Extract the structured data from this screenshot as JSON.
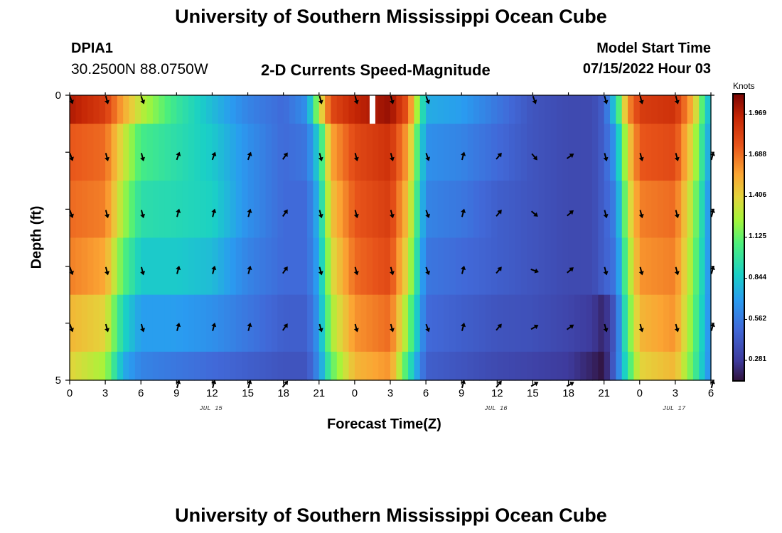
{
  "page_title_top": "University of Southern Mississippi Ocean Cube",
  "page_title_bottom": "University of Southern Mississippi Ocean Cube",
  "station": {
    "id": "DPIA1",
    "coords": "30.2500N  88.0750W"
  },
  "model": {
    "label": "Model Start Time",
    "start": "07/15/2022 Hour 03"
  },
  "chart_data": {
    "type": "heatmap",
    "title": "2-D Currents Speed-Magnitude",
    "xlabel": "Forecast Time(Z)",
    "ylabel": "Depth (ft)",
    "ylim": [
      0,
      5
    ],
    "x_hours_range": [
      0,
      54
    ],
    "x_tick_hours": [
      0,
      3,
      6,
      9,
      12,
      15,
      18,
      21,
      24,
      27,
      30,
      33,
      36,
      39,
      42,
      45,
      48,
      51,
      54
    ],
    "x_tick_labels": [
      "0",
      "3",
      "6",
      "9",
      "12",
      "15",
      "18",
      "21",
      "0",
      "3",
      "6",
      "9",
      "12",
      "15",
      "18",
      "21",
      "0",
      "3",
      "6"
    ],
    "y_tick_labels": [
      "0",
      "5"
    ],
    "date_labels": [
      {
        "text": "JUL 15",
        "hour": 12
      },
      {
        "text": "JUL 16",
        "hour": 36
      },
      {
        "text": "JUL 17",
        "hour": 51
      }
    ],
    "colorbar": {
      "unit": "Knots",
      "min": 0.14,
      "max": 2.11,
      "ticks": [
        "1.969",
        "1.688",
        "1.406",
        "1.125",
        "0.844",
        "0.562",
        "0.281"
      ],
      "tick_values": [
        1.969,
        1.688,
        1.406,
        1.125,
        0.844,
        0.562,
        0.281
      ]
    },
    "depth_levels": [
      0,
      1,
      2,
      3,
      4,
      5
    ],
    "speed_keyframes": [
      {
        "hour": 0,
        "speeds": [
          2.0,
          1.75,
          1.7,
          1.65,
          1.5,
          1.4
        ]
      },
      {
        "hour": 3,
        "speeds": [
          1.85,
          1.7,
          1.65,
          1.55,
          1.4,
          1.25
        ]
      },
      {
        "hour": 4.5,
        "speeds": [
          1.55,
          1.35,
          1.25,
          1.1,
          0.9,
          0.75
        ]
      },
      {
        "hour": 6,
        "speeds": [
          1.3,
          1.05,
          0.95,
          0.85,
          0.7,
          0.6
        ]
      },
      {
        "hour": 9,
        "speeds": [
          1.0,
          0.95,
          0.92,
          0.85,
          0.7,
          0.55
        ]
      },
      {
        "hour": 12,
        "speeds": [
          0.8,
          0.85,
          0.88,
          0.8,
          0.65,
          0.5
        ]
      },
      {
        "hour": 15,
        "speeds": [
          0.6,
          0.65,
          0.65,
          0.6,
          0.55,
          0.45
        ]
      },
      {
        "hour": 18,
        "speeds": [
          0.5,
          0.5,
          0.5,
          0.5,
          0.45,
          0.4
        ]
      },
      {
        "hour": 20,
        "speeds": [
          0.65,
          0.55,
          0.5,
          0.5,
          0.45,
          0.4
        ]
      },
      {
        "hour": 21,
        "speeds": [
          1.3,
          0.9,
          0.8,
          0.75,
          0.7,
          0.65
        ]
      },
      {
        "hour": 22,
        "speeds": [
          1.8,
          1.55,
          1.45,
          1.35,
          1.25,
          1.1
        ]
      },
      {
        "hour": 24,
        "speeds": [
          1.95,
          1.8,
          1.75,
          1.7,
          1.6,
          1.5
        ]
      },
      {
        "hour": 27,
        "speeds": [
          2.05,
          1.9,
          1.85,
          1.8,
          1.7,
          1.6
        ]
      },
      {
        "hour": 28.5,
        "speeds": [
          1.75,
          1.55,
          1.45,
          1.35,
          1.2,
          1.0
        ]
      },
      {
        "hour": 30,
        "speeds": [
          0.75,
          0.65,
          0.6,
          0.55,
          0.5,
          0.45
        ]
      },
      {
        "hour": 33,
        "speeds": [
          0.7,
          0.6,
          0.55,
          0.5,
          0.45,
          0.4
        ]
      },
      {
        "hour": 36,
        "speeds": [
          0.55,
          0.5,
          0.45,
          0.45,
          0.4,
          0.35
        ]
      },
      {
        "hour": 39,
        "speeds": [
          0.4,
          0.4,
          0.4,
          0.4,
          0.38,
          0.32
        ]
      },
      {
        "hour": 42,
        "speeds": [
          0.35,
          0.35,
          0.35,
          0.35,
          0.33,
          0.28
        ]
      },
      {
        "hour": 44,
        "speeds": [
          0.35,
          0.35,
          0.35,
          0.35,
          0.28,
          0.2
        ]
      },
      {
        "hour": 45,
        "speeds": [
          0.45,
          0.45,
          0.45,
          0.45,
          0.2,
          0.14
        ]
      },
      {
        "hour": 46,
        "speeds": [
          0.9,
          0.7,
          0.6,
          0.55,
          0.45,
          0.5
        ]
      },
      {
        "hour": 47,
        "speeds": [
          1.6,
          1.4,
          1.3,
          1.2,
          1.1,
          1.0
        ]
      },
      {
        "hour": 48,
        "speeds": [
          1.85,
          1.75,
          1.65,
          1.6,
          1.5,
          1.4
        ]
      },
      {
        "hour": 51,
        "speeds": [
          1.9,
          1.8,
          1.7,
          1.65,
          1.6,
          1.5
        ]
      },
      {
        "hour": 52.5,
        "speeds": [
          1.5,
          1.35,
          1.25,
          1.2,
          1.15,
          1.1
        ]
      },
      {
        "hour": 54,
        "speeds": [
          0.7,
          0.65,
          0.6,
          0.6,
          0.6,
          0.6
        ]
      }
    ],
    "missing_cells": [
      {
        "hour": 25.5,
        "depth_from": 0,
        "depth_to": 0.5
      }
    ],
    "direction_arrows": {
      "hours": [
        0,
        3,
        6,
        9,
        12,
        15,
        18,
        21,
        24,
        27,
        30,
        33,
        36,
        39,
        42,
        45,
        48,
        51,
        54
      ],
      "depth_levels": [
        0,
        1,
        2,
        3,
        4,
        5
      ],
      "angles_deg": [
        [
          160,
          160,
          160,
          160,
          160,
          null
        ],
        [
          165,
          165,
          165,
          165,
          165,
          null
        ],
        [
          160,
          165,
          165,
          165,
          165,
          null
        ],
        [
          null,
          20,
          15,
          15,
          15,
          15
        ],
        [
          null,
          20,
          15,
          15,
          15,
          15
        ],
        [
          null,
          20,
          15,
          15,
          15,
          15
        ],
        [
          null,
          35,
          35,
          35,
          35,
          40
        ],
        [
          165,
          165,
          165,
          165,
          165,
          null
        ],
        [
          165,
          165,
          165,
          165,
          165,
          null
        ],
        [
          165,
          165,
          165,
          165,
          165,
          null
        ],
        [
          160,
          160,
          160,
          160,
          160,
          null
        ],
        [
          null,
          15,
          15,
          15,
          15,
          15
        ],
        [
          null,
          40,
          40,
          40,
          40,
          40
        ],
        [
          160,
          140,
          130,
          110,
          60,
          60
        ],
        [
          null,
          55,
          50,
          50,
          55,
          60
        ],
        [
          165,
          165,
          165,
          165,
          165,
          null
        ],
        [
          165,
          165,
          165,
          165,
          165,
          null
        ],
        [
          165,
          165,
          165,
          165,
          165,
          null
        ],
        [
          null,
          15,
          15,
          15,
          15,
          15
        ]
      ]
    }
  }
}
